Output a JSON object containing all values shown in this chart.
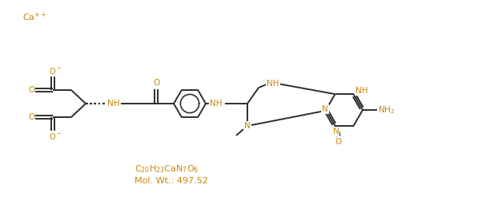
{
  "bg_color": "#ffffff",
  "line_color": "#2d2d2d",
  "atom_color": "#c8860a",
  "lw": 1.4,
  "fs": 7.5,
  "formula": "C$_{20}$H$_{23}$CaN$_7$O$_6$",
  "molwt": "Mol. Wt.: 497.52",
  "ca_label": "Ca$^{++}$"
}
